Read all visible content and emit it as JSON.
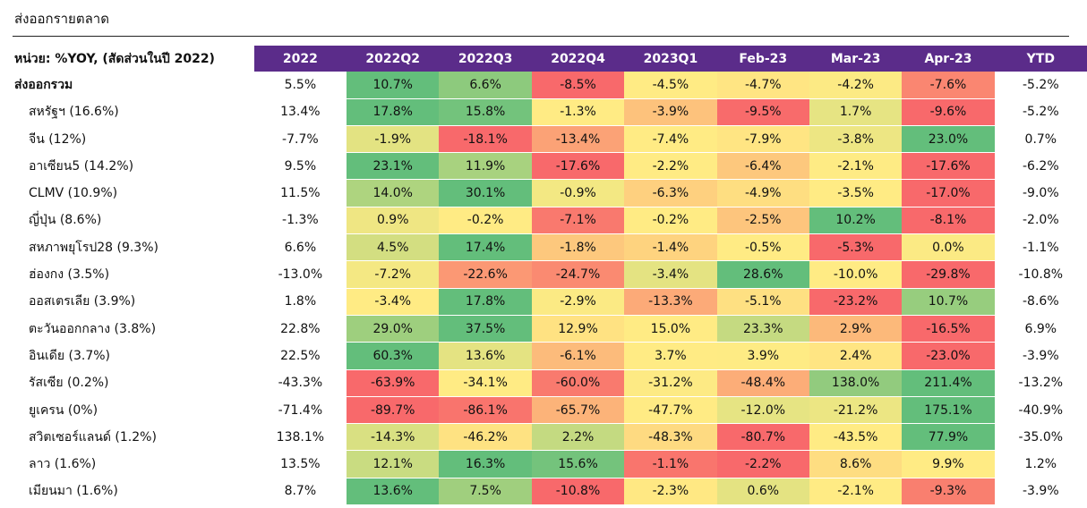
{
  "title": "ส่งออกรายตลาด",
  "colors": {
    "header_bg": "#5b2c8a",
    "high": "#63be7b",
    "mid": "#ffeb84",
    "low": "#f8696b"
  },
  "chart_data": {
    "type": "table",
    "title": "ส่งออกรายตลาด",
    "unit_label": "หน่วย: %YOY, (สัดส่วนในปี 2022)",
    "columns": [
      "2022",
      "2022Q2",
      "2022Q3",
      "2022Q4",
      "2023Q1",
      "Feb-23",
      "Mar-23",
      "Apr-23",
      "YTD"
    ],
    "heatmap_columns": [
      "2022Q2",
      "2022Q3",
      "2022Q4",
      "2023Q1",
      "Feb-23",
      "Mar-23",
      "Apr-23"
    ],
    "rows": [
      {
        "label": "ส่งออกรวม",
        "cells": [
          "5.5%",
          "10.7%",
          "6.6%",
          "-8.5%",
          "-4.5%",
          "-4.7%",
          "-4.2%",
          "-7.6%",
          "-5.2%"
        ],
        "values": [
          5.5,
          10.7,
          6.6,
          -8.5,
          -4.5,
          -4.7,
          -4.2,
          -7.6,
          -5.2
        ]
      },
      {
        "label": "สหรัฐฯ (16.6%)",
        "cells": [
          "13.4%",
          "17.8%",
          "15.8%",
          "-1.3%",
          "-3.9%",
          "-9.5%",
          "1.7%",
          "-9.6%",
          "-5.2%"
        ],
        "values": [
          13.4,
          17.8,
          15.8,
          -1.3,
          -3.9,
          -9.5,
          1.7,
          -9.6,
          -5.2
        ]
      },
      {
        "label": "จีน (12%)",
        "cells": [
          "-7.7%",
          "-1.9%",
          "-18.1%",
          "-13.4%",
          "-7.4%",
          "-7.9%",
          "-3.8%",
          "23.0%",
          "0.7%"
        ],
        "values": [
          -7.7,
          -1.9,
          -18.1,
          -13.4,
          -7.4,
          -7.9,
          -3.8,
          23.0,
          0.7
        ]
      },
      {
        "label": "อาเซียน5 (14.2%)",
        "cells": [
          "9.5%",
          "23.1%",
          "11.9%",
          "-17.6%",
          "-2.2%",
          "-6.4%",
          "-2.1%",
          "-17.6%",
          "-6.2%"
        ],
        "values": [
          9.5,
          23.1,
          11.9,
          -17.6,
          -2.2,
          -6.4,
          -2.1,
          -17.6,
          -6.2
        ]
      },
      {
        "label": "CLMV (10.9%)",
        "cells": [
          "11.5%",
          "14.0%",
          "30.1%",
          "-0.9%",
          "-6.3%",
          "-4.9%",
          "-3.5%",
          "-17.0%",
          "-9.0%"
        ],
        "values": [
          11.5,
          14.0,
          30.1,
          -0.9,
          -6.3,
          -4.9,
          -3.5,
          -17.0,
          -9.0
        ]
      },
      {
        "label": "ญี่ปุ่น (8.6%)",
        "cells": [
          "-1.3%",
          "0.9%",
          "-0.2%",
          "-7.1%",
          "-0.2%",
          "-2.5%",
          "10.2%",
          "-8.1%",
          "-2.0%"
        ],
        "values": [
          -1.3,
          0.9,
          -0.2,
          -7.1,
          -0.2,
          -2.5,
          10.2,
          -8.1,
          -2.0
        ]
      },
      {
        "label": "สหภาพยุโรป28 (9.3%)",
        "cells": [
          "6.6%",
          "4.5%",
          "17.4%",
          "-1.8%",
          "-1.4%",
          "-0.5%",
          "-5.3%",
          "0.0%",
          "-1.1%"
        ],
        "values": [
          6.6,
          4.5,
          17.4,
          -1.8,
          -1.4,
          -0.5,
          -5.3,
          0.0,
          -1.1
        ]
      },
      {
        "label": "ฮ่องกง (3.5%)",
        "cells": [
          "-13.0%",
          "-7.2%",
          "-22.6%",
          "-24.7%",
          "-3.4%",
          "28.6%",
          "-10.0%",
          "-29.8%",
          "-10.8%"
        ],
        "values": [
          -13.0,
          -7.2,
          -22.6,
          -24.7,
          -3.4,
          28.6,
          -10.0,
          -29.8,
          -10.8
        ]
      },
      {
        "label": "ออสเตรเลีย (3.9%)",
        "cells": [
          "1.8%",
          "-3.4%",
          "17.8%",
          "-2.9%",
          "-13.3%",
          "-5.1%",
          "-23.2%",
          "10.7%",
          "-8.6%"
        ],
        "values": [
          1.8,
          -3.4,
          17.8,
          -2.9,
          -13.3,
          -5.1,
          -23.2,
          10.7,
          -8.6
        ]
      },
      {
        "label": "ตะวันออกกลาง (3.8%)",
        "cells": [
          "22.8%",
          "29.0%",
          "37.5%",
          "12.9%",
          "15.0%",
          "23.3%",
          "2.9%",
          "-16.5%",
          "6.9%"
        ],
        "values": [
          22.8,
          29.0,
          37.5,
          12.9,
          15.0,
          23.3,
          2.9,
          -16.5,
          6.9
        ]
      },
      {
        "label": "อินเดีย (3.7%)",
        "cells": [
          "22.5%",
          "60.3%",
          "13.6%",
          "-6.1%",
          "3.7%",
          "3.9%",
          "2.4%",
          "-23.0%",
          "-3.9%"
        ],
        "values": [
          22.5,
          60.3,
          13.6,
          -6.1,
          3.7,
          3.9,
          2.4,
          -23.0,
          -3.9
        ]
      },
      {
        "label": "รัสเซีย (0.2%)",
        "cells": [
          "-43.3%",
          "-63.9%",
          "-34.1%",
          "-60.0%",
          "-31.2%",
          "-48.4%",
          "138.0%",
          "211.4%",
          "-13.2%"
        ],
        "values": [
          -43.3,
          -63.9,
          -34.1,
          -60.0,
          -31.2,
          -48.4,
          138.0,
          211.4,
          -13.2
        ]
      },
      {
        "label": "ยูเครน (0%)",
        "cells": [
          "-71.4%",
          "-89.7%",
          "-86.1%",
          "-65.7%",
          "-47.7%",
          "-12.0%",
          "-21.2%",
          "175.1%",
          "-40.9%"
        ],
        "values": [
          -71.4,
          -89.7,
          -86.1,
          -65.7,
          -47.7,
          -12.0,
          -21.2,
          175.1,
          -40.9
        ]
      },
      {
        "label": "สวิตเซอร์แลนด์ (1.2%)",
        "cells": [
          "138.1%",
          "-14.3%",
          "-46.2%",
          "2.2%",
          "-48.3%",
          "-80.7%",
          "-43.5%",
          "77.9%",
          "-35.0%"
        ],
        "values": [
          138.1,
          -14.3,
          -46.2,
          2.2,
          -48.3,
          -80.7,
          -43.5,
          77.9,
          -35.0
        ]
      },
      {
        "label": "ลาว (1.6%)",
        "cells": [
          "13.5%",
          "12.1%",
          "16.3%",
          "15.6%",
          "-1.1%",
          "-2.2%",
          "8.6%",
          "9.9%",
          "1.2%"
        ],
        "values": [
          13.5,
          12.1,
          16.3,
          15.6,
          -1.1,
          -2.2,
          8.6,
          9.9,
          1.2
        ]
      },
      {
        "label": "เมียนมา (1.6%)",
        "cells": [
          "8.7%",
          "13.6%",
          "7.5%",
          "-10.8%",
          "-2.3%",
          "0.6%",
          "-2.1%",
          "-9.3%",
          "-3.9%"
        ],
        "values": [
          8.7,
          13.6,
          7.5,
          -10.8,
          -2.3,
          0.6,
          -2.1,
          -9.3,
          -3.9
        ]
      }
    ]
  }
}
